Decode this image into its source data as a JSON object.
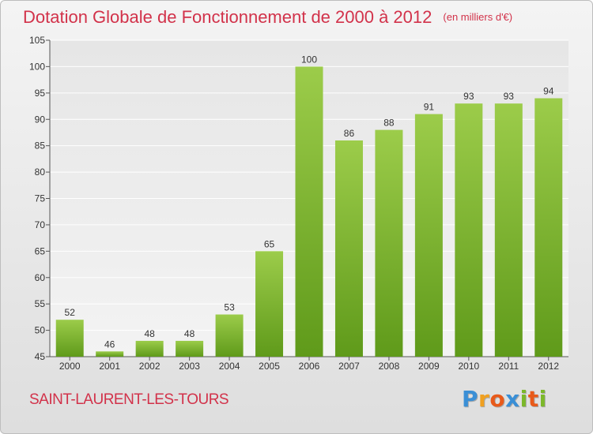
{
  "title": "Dotation Globale de Fonctionnement de 2000 à 2012",
  "subtitle": "(en milliers d'€)",
  "commune": "SAINT-LAURENT-LES-TOURS",
  "logo": {
    "letters": [
      "P",
      "r",
      "o",
      "x",
      "i",
      "t",
      "i"
    ],
    "colors": [
      "#3a8fd6",
      "#f0a020",
      "#e85a1a",
      "#3a8fd6",
      "#7cb82a",
      "#e85a1a",
      "#7cb82a"
    ]
  },
  "colors": {
    "title": "#d2324a",
    "bar_top": "#9ccc4a",
    "bar_bottom": "#5f9a1a"
  },
  "chart_data": {
    "type": "bar",
    "title": "Dotation Globale de Fonctionnement de 2000 à 2012",
    "subtitle": "(en milliers d'€)",
    "categories": [
      "2000",
      "2001",
      "2002",
      "2003",
      "2004",
      "2005",
      "2006",
      "2007",
      "2008",
      "2009",
      "2010",
      "2011",
      "2012"
    ],
    "values": [
      52,
      46,
      48,
      48,
      53,
      65,
      100,
      86,
      88,
      91,
      93,
      93,
      94
    ],
    "ylim": [
      45,
      105
    ],
    "yticks": [
      45,
      50,
      55,
      60,
      65,
      70,
      75,
      80,
      85,
      90,
      95,
      100,
      105
    ],
    "grid": true,
    "xlabel": "",
    "ylabel": ""
  }
}
